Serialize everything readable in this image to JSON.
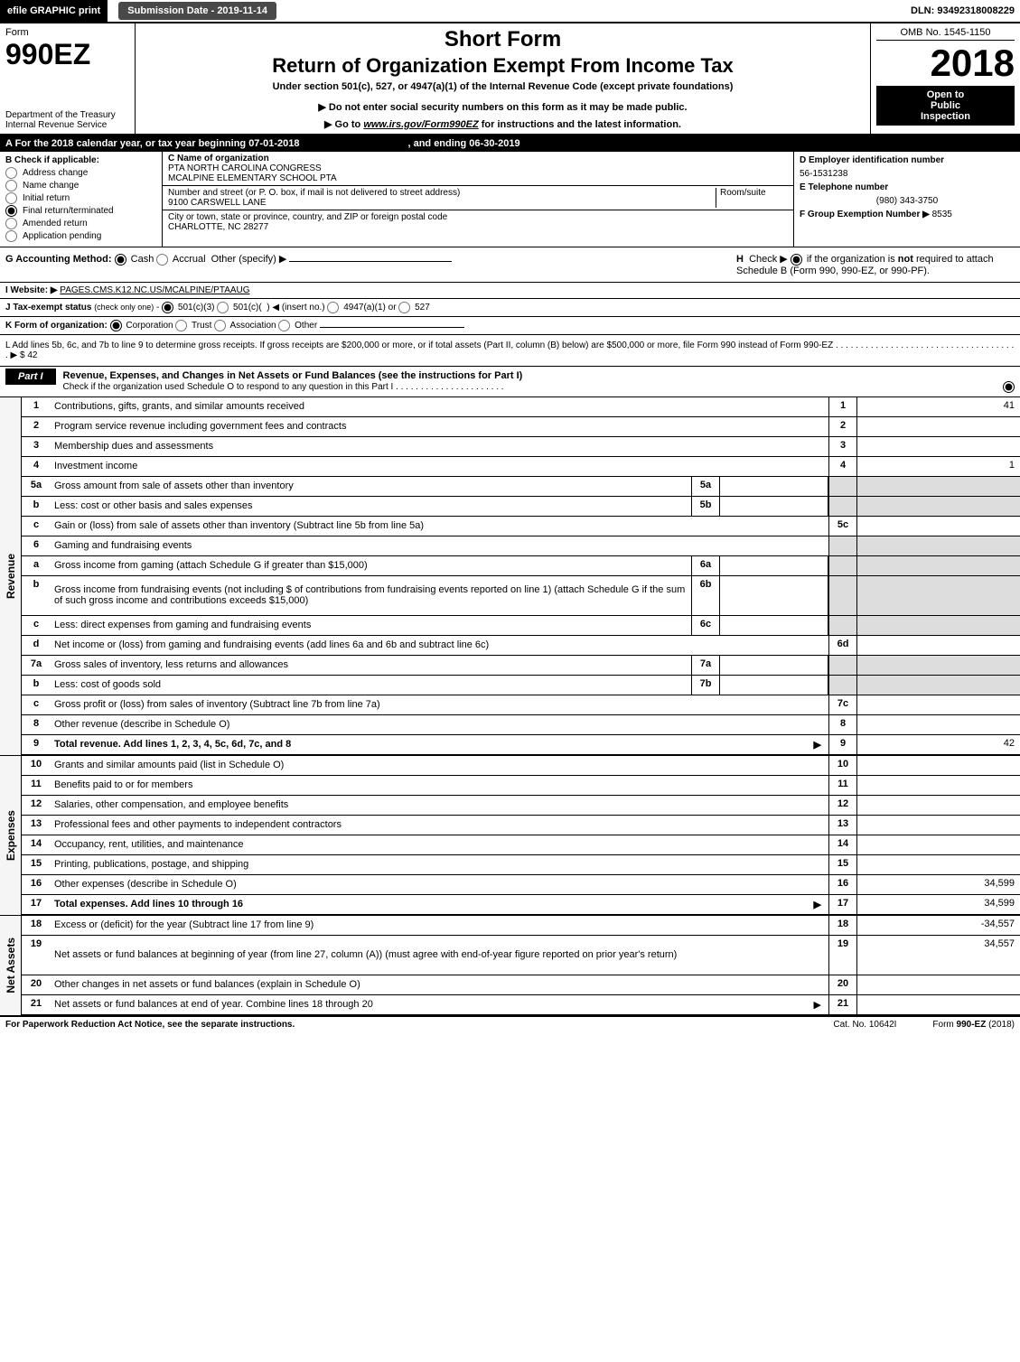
{
  "colors": {
    "black": "#000000",
    "white": "#ffffff",
    "dark_gray": "#494949",
    "shade": "#dddddd",
    "light": "#f5f5f5"
  },
  "top": {
    "efile": "efile GRAPHIC print",
    "submission": "Submission Date - 2019-11-14",
    "dln": "DLN: 93492318008229"
  },
  "header": {
    "form_label": "Form",
    "form_num": "990EZ",
    "dept1": "Department of the Treasury",
    "dept2": "Internal Revenue Service",
    "short": "Short Form",
    "return": "Return of Organization Exempt From Income Tax",
    "under": "Under section 501(c), 527, or 4947(a)(1) of the Internal Revenue Code (except private foundations)",
    "donot": "▶ Do not enter social security numbers on this form as it may be made public.",
    "goto_pre": "▶ Go to ",
    "goto_link": "www.irs.gov/Form990EZ",
    "goto_post": " for instructions and the latest information.",
    "omb": "OMB No. 1545-1150",
    "year": "2018",
    "inspect1": "Open to",
    "inspect2": "Public",
    "inspect3": "Inspection"
  },
  "tax_year": {
    "a": "A For the 2018 calendar year, or tax year beginning 07-01-2018",
    "end": ", and ending 06-30-2019"
  },
  "box_b": {
    "title": "B  Check if applicable:",
    "items": [
      "Address change",
      "Name change",
      "Initial return",
      "Final return/terminated",
      "Amended return",
      "Application pending"
    ]
  },
  "box_c": {
    "name_lbl": "C Name of organization",
    "name1": "PTA NORTH CAROLINA CONGRESS",
    "name2": "MCALPINE ELEMENTARY SCHOOL PTA",
    "street_lbl": "Number and street (or P. O. box, if mail is not delivered to street address)",
    "room_lbl": "Room/suite",
    "street": "9100 CARSWELL LANE",
    "city_lbl": "City or town, state or province, country, and ZIP or foreign postal code",
    "city": "CHARLOTTE, NC  28277"
  },
  "box_d": {
    "ein_lbl": "D Employer identification number",
    "ein": "56-1531238",
    "tel_lbl": "E Telephone number",
    "tel": "(980) 343-3750",
    "grp_lbl": "F Group Exemption Number  ▶",
    "grp": "8535"
  },
  "line_g": {
    "label": "G Accounting Method:",
    "cash": "Cash",
    "accrual": "Accrual",
    "other": "Other (specify) ▶"
  },
  "line_h": {
    "text": "H  Check ▶    if the organization is not required to attach Schedule B (Form 990, 990-EZ, or 990-PF)."
  },
  "line_i": {
    "label": "I Website: ▶",
    "url": "PAGES.CMS.K12.NC.US/MCALPINE/PTAAUG"
  },
  "line_j": {
    "text": "J Tax-exempt status (check only one) -   501(c)(3)   501(c)(  ) ◀ (insert no.)   4947(a)(1) or   527"
  },
  "line_k": {
    "label": "K Form of organization:",
    "opts": [
      "Corporation",
      "Trust",
      "Association",
      "Other"
    ]
  },
  "line_l": {
    "text": "L Add lines 5b, 6c, and 7b to line 9 to determine gross receipts. If gross receipts are $200,000 or more, or if total assets (Part II, column (B) below) are $500,000 or more, file Form 990 instead of Form 990-EZ . . . . . . . . . . . . . . . . . . . . . . . . . . . . . . . . . . . . . ▶ $ 42"
  },
  "part1": {
    "badge": "Part I",
    "title": "Revenue, Expenses, and Changes in Net Assets or Fund Balances (see the instructions for Part I)",
    "sub": "Check if the organization used Schedule O to respond to any question in this Part I . . . . . . . . . . . . . . . . . . . . . ."
  },
  "side_labels": {
    "revenue": "Revenue",
    "expenses": "Expenses",
    "net": "Net Assets"
  },
  "rows": [
    {
      "n": "1",
      "d": "Contributions, gifts, grants, and similar amounts received",
      "cn": "1",
      "cv": "41"
    },
    {
      "n": "2",
      "d": "Program service revenue including government fees and contracts",
      "cn": "2",
      "cv": ""
    },
    {
      "n": "3",
      "d": "Membership dues and assessments",
      "cn": "3",
      "cv": ""
    },
    {
      "n": "4",
      "d": "Investment income",
      "cn": "4",
      "cv": "1"
    },
    {
      "n": "5a",
      "d": "Gross amount from sale of assets other than inventory",
      "mn": "5a",
      "mv": "",
      "shade": true
    },
    {
      "n": "b",
      "d": "Less: cost or other basis and sales expenses",
      "mn": "5b",
      "mv": "",
      "shade": true
    },
    {
      "n": "c",
      "d": "Gain or (loss) from sale of assets other than inventory (Subtract line 5b from line 5a)",
      "cn": "5c",
      "cv": ""
    },
    {
      "n": "6",
      "d": "Gaming and fundraising events",
      "shade": true,
      "nocol": true
    },
    {
      "n": "a",
      "d": "Gross income from gaming (attach Schedule G if greater than $15,000)",
      "mn": "6a",
      "mv": "",
      "shade": true
    },
    {
      "n": "b",
      "d": "Gross income from fundraising events (not including $                of contributions from fundraising events reported on line 1) (attach Schedule G if the sum of such gross income and contributions exceeds $15,000)",
      "mn": "6b",
      "mv": "",
      "shade": true,
      "tall": true
    },
    {
      "n": "c",
      "d": "Less: direct expenses from gaming and fundraising events",
      "mn": "6c",
      "mv": "",
      "shade": true
    },
    {
      "n": "d",
      "d": "Net income or (loss) from gaming and fundraising events (add lines 6a and 6b and subtract line 6c)",
      "cn": "6d",
      "cv": ""
    },
    {
      "n": "7a",
      "d": "Gross sales of inventory, less returns and allowances",
      "mn": "7a",
      "mv": "",
      "shade": true
    },
    {
      "n": "b",
      "d": "Less: cost of goods sold",
      "mn": "7b",
      "mv": "",
      "shade": true
    },
    {
      "n": "c",
      "d": "Gross profit or (loss) from sales of inventory (Subtract line 7b from line 7a)",
      "cn": "7c",
      "cv": ""
    },
    {
      "n": "8",
      "d": "Other revenue (describe in Schedule O)",
      "cn": "8",
      "cv": ""
    },
    {
      "n": "9",
      "d": "Total revenue. Add lines 1, 2, 3, 4, 5c, 6d, 7c, and 8",
      "cn": "9",
      "cv": "42",
      "bold": true,
      "arrow": true
    }
  ],
  "exp_rows": [
    {
      "n": "10",
      "d": "Grants and similar amounts paid (list in Schedule O)",
      "cn": "10",
      "cv": ""
    },
    {
      "n": "11",
      "d": "Benefits paid to or for members",
      "cn": "11",
      "cv": ""
    },
    {
      "n": "12",
      "d": "Salaries, other compensation, and employee benefits",
      "cn": "12",
      "cv": ""
    },
    {
      "n": "13",
      "d": "Professional fees and other payments to independent contractors",
      "cn": "13",
      "cv": ""
    },
    {
      "n": "14",
      "d": "Occupancy, rent, utilities, and maintenance",
      "cn": "14",
      "cv": ""
    },
    {
      "n": "15",
      "d": "Printing, publications, postage, and shipping",
      "cn": "15",
      "cv": ""
    },
    {
      "n": "16",
      "d": "Other expenses (describe in Schedule O)",
      "cn": "16",
      "cv": "34,599"
    },
    {
      "n": "17",
      "d": "Total expenses. Add lines 10 through 16",
      "cn": "17",
      "cv": "34,599",
      "bold": true,
      "arrow": true
    }
  ],
  "net_rows": [
    {
      "n": "18",
      "d": "Excess or (deficit) for the year (Subtract line 17 from line 9)",
      "cn": "18",
      "cv": "-34,557"
    },
    {
      "n": "19",
      "d": "Net assets or fund balances at beginning of year (from line 27, column (A)) (must agree with end-of-year figure reported on prior year's return)",
      "cn": "19",
      "cv": "34,557",
      "tall": true
    },
    {
      "n": "20",
      "d": "Other changes in net assets or fund balances (explain in Schedule O)",
      "cn": "20",
      "cv": ""
    },
    {
      "n": "21",
      "d": "Net assets or fund balances at end of year. Combine lines 18 through 20",
      "cn": "21",
      "cv": "",
      "arrow": true
    }
  ],
  "footer": {
    "left": "For Paperwork Reduction Act Notice, see the separate instructions.",
    "center": "Cat. No. 10642I",
    "right": "Form 990-EZ (2018)"
  }
}
